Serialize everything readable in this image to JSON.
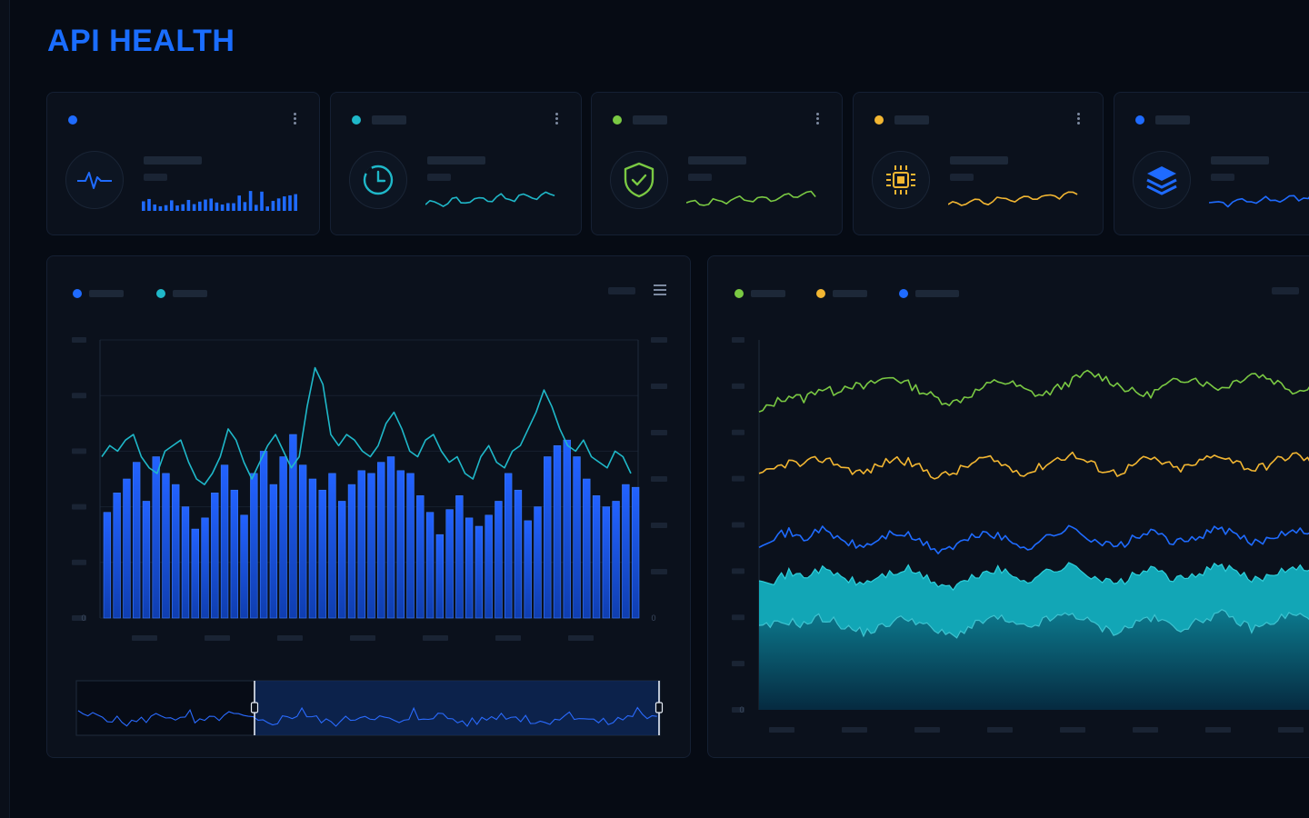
{
  "page": {
    "title": "API HEALTH"
  },
  "colors": {
    "blue": "#1f6bff",
    "cyan": "#1fb8c9",
    "green": "#7ac943",
    "yellow": "#f2b632",
    "grid": "#1a2536",
    "background": "#060b14"
  },
  "cards": [
    {
      "id": "card-1",
      "dot_color": "#1f6bff",
      "icon": "heartbeat-icon",
      "spark_type": "bars",
      "spark_color": "#1f6bff"
    },
    {
      "id": "card-2",
      "dot_color": "#1fb8c9",
      "icon": "clock-icon",
      "spark_type": "line",
      "spark_color": "#1fb8c9"
    },
    {
      "id": "card-3",
      "dot_color": "#7ac943",
      "icon": "shield-check-icon",
      "spark_type": "line",
      "spark_color": "#7ac943"
    },
    {
      "id": "card-4",
      "dot_color": "#f2b632",
      "icon": "chip-icon",
      "spark_type": "line",
      "spark_color": "#f2b632"
    },
    {
      "id": "card-5",
      "dot_color": "#1f6bff",
      "icon": "layers-icon",
      "spark_type": "line",
      "spark_color": "#1f6bff"
    }
  ],
  "left_panel": {
    "legend": [
      {
        "color": "#1f6bff"
      },
      {
        "color": "#1fb8c9"
      }
    ],
    "y_axis_zero": "0",
    "y2_axis_zero": "0"
  },
  "right_panel": {
    "legend": [
      {
        "color": "#7ac943"
      },
      {
        "color": "#f2b632"
      },
      {
        "color": "#1f6bff"
      }
    ],
    "y_axis_zero": "0"
  },
  "chart_data": [
    {
      "type": "bar",
      "note_series": "bars with line overlay",
      "series": [
        {
          "kind": "bar",
          "color": "#1f6bff",
          "values": [
            38,
            45,
            50,
            56,
            42,
            58,
            52,
            48,
            40,
            32,
            36,
            45,
            55,
            46,
            37,
            52,
            60,
            48,
            58,
            66,
            55,
            50,
            46,
            52,
            42,
            48,
            53,
            52,
            56,
            58,
            53,
            52,
            44,
            38,
            30,
            39,
            44,
            36,
            33,
            37,
            42,
            52,
            46,
            35,
            40,
            58,
            62,
            64,
            58,
            50,
            44,
            40,
            42,
            48,
            47
          ]
        },
        {
          "kind": "line",
          "color": "#1fb8c9",
          "values": [
            58,
            62,
            60,
            64,
            66,
            58,
            54,
            52,
            60,
            62,
            64,
            56,
            50,
            48,
            52,
            58,
            68,
            64,
            56,
            50,
            56,
            62,
            66,
            60,
            54,
            58,
            76,
            90,
            84,
            66,
            62,
            66,
            64,
            60,
            58,
            62,
            70,
            74,
            68,
            60,
            58,
            64,
            66,
            60,
            56,
            58,
            52,
            50,
            58,
            62,
            56,
            54,
            60,
            62,
            68,
            74,
            82,
            76,
            68,
            62,
            60,
            64,
            58,
            56,
            54,
            60,
            58,
            52
          ]
        }
      ],
      "ylim": [
        0,
        100
      ]
    },
    {
      "type": "line",
      "series": [
        {
          "color": "#7ac943",
          "values": [
            80,
            83,
            85,
            84,
            87,
            86,
            88,
            87,
            89,
            90,
            88,
            86,
            84,
            83,
            85,
            87,
            89,
            88,
            86,
            85,
            87,
            89,
            91,
            90,
            88,
            86,
            85,
            87,
            89,
            90,
            88,
            87,
            89,
            91,
            90,
            88,
            86,
            88,
            90
          ]
        },
        {
          "color": "#f2b632",
          "values": [
            63,
            65,
            67,
            66,
            68,
            67,
            65,
            64,
            66,
            68,
            67,
            65,
            63,
            64,
            66,
            68,
            67,
            65,
            64,
            66,
            68,
            69,
            67,
            65,
            64,
            66,
            68,
            67,
            65,
            66,
            68,
            69,
            67,
            65,
            66,
            68,
            69,
            67,
            66
          ]
        },
        {
          "color": "#1f6bff",
          "values": [
            45,
            47,
            48,
            46,
            49,
            47,
            45,
            44,
            46,
            48,
            47,
            45,
            43,
            44,
            46,
            48,
            47,
            45,
            44,
            46,
            48,
            49,
            47,
            45,
            44,
            46,
            48,
            47,
            45,
            46,
            48,
            49,
            47,
            45,
            46,
            48,
            49,
            47,
            46
          ]
        }
      ],
      "area_series": [
        {
          "color": "#1fb8c9",
          "values": [
            36,
            35,
            37,
            36,
            38,
            37,
            35,
            34,
            36,
            37,
            38,
            36,
            34,
            33,
            35,
            37,
            38,
            36,
            35,
            37,
            38,
            39,
            37,
            35,
            34,
            36,
            38,
            37,
            35,
            36,
            38,
            39,
            37,
            35,
            36,
            38,
            39,
            37,
            36
          ]
        },
        {
          "color": "#0c6f86",
          "values": [
            22,
            23,
            24,
            23,
            25,
            24,
            22,
            21,
            22,
            24,
            25,
            23,
            21,
            20,
            22,
            24,
            25,
            23,
            22,
            24,
            25,
            26,
            24,
            22,
            21,
            23,
            25,
            24,
            22,
            23,
            25,
            26,
            24,
            22,
            23,
            25,
            26,
            24,
            23
          ]
        }
      ],
      "ylim": [
        0,
        100
      ]
    }
  ]
}
